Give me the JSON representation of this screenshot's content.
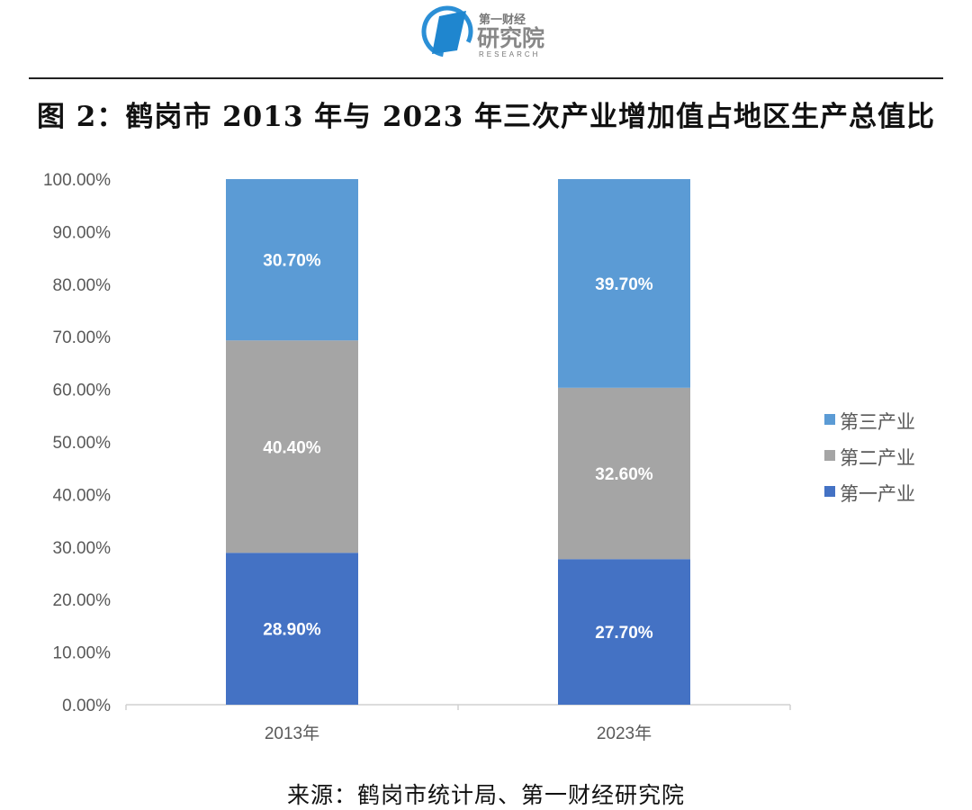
{
  "logo": {
    "line1": "第一财经",
    "line2": "研究院",
    "line3": "RESEARCH"
  },
  "title": "图 2：鹤岗市 2013 年与 2023 年三次产业增加值占地区生产总值比",
  "source": "来源：鹤岗市统计局、第一财经研究院",
  "chart_data": {
    "type": "bar",
    "stacked": true,
    "title": "图 2：鹤岗市 2013 年与 2023 年三次产业增加值占地区生产总值比",
    "categories": [
      "2013年",
      "2023年"
    ],
    "series": [
      {
        "name": "第一产业",
        "values": [
          28.9,
          27.7
        ],
        "labels": [
          "28.90%",
          "27.70%"
        ],
        "color": "#4472C4"
      },
      {
        "name": "第二产业",
        "values": [
          40.4,
          32.6
        ],
        "labels": [
          "40.40%",
          "32.60%"
        ],
        "color": "#A5A5A5"
      },
      {
        "name": "第三产业",
        "values": [
          30.7,
          39.7
        ],
        "labels": [
          "30.70%",
          "39.70%"
        ],
        "color": "#5B9BD5"
      }
    ],
    "yticks": [
      "0.00%",
      "10.00%",
      "20.00%",
      "30.00%",
      "40.00%",
      "50.00%",
      "60.00%",
      "70.00%",
      "80.00%",
      "90.00%",
      "100.00%"
    ],
    "ylim": [
      0,
      100
    ],
    "xlabel": "",
    "ylabel": "",
    "grid": false,
    "legend": "right"
  }
}
